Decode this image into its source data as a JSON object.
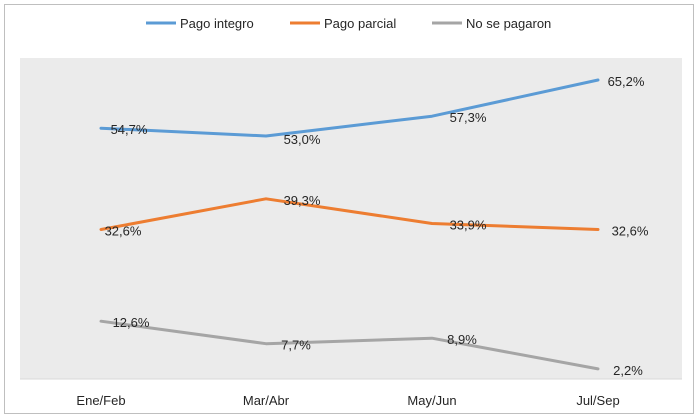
{
  "chart_data": {
    "type": "line",
    "title": "",
    "xlabel": "",
    "ylabel": "",
    "categories": [
      "Ene/Feb",
      "Mar/Abr",
      "May/Jun",
      "Jul/Sep"
    ],
    "ylim": [
      0,
      70
    ],
    "grid": false,
    "legend_position": "top",
    "series": [
      {
        "name": "Pago integro",
        "color": "#5b9bd5",
        "values": [
          54.7,
          53.0,
          57.3,
          65.2
        ],
        "labels": [
          "54,7%",
          "53,0%",
          "57,3%",
          "65,2%"
        ]
      },
      {
        "name": "Pago parcial",
        "color": "#ed7d31",
        "values": [
          32.6,
          39.3,
          33.9,
          32.6
        ],
        "labels": [
          "32,6%",
          "39,3%",
          "33,9%",
          "32,6%"
        ]
      },
      {
        "name": "No se pagaron",
        "color": "#a5a5a5",
        "values": [
          12.6,
          7.7,
          8.9,
          2.2
        ],
        "labels": [
          "12,6%",
          "7,7%",
          "8,9%",
          "2,2%"
        ]
      }
    ]
  },
  "plot_background": "#ebebeb"
}
